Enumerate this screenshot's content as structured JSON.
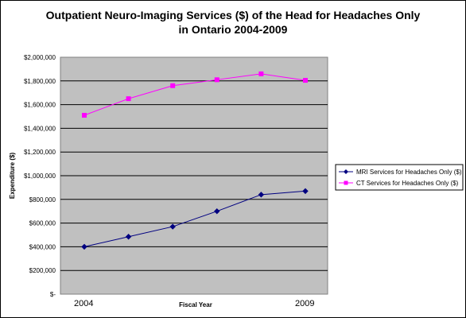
{
  "chart_data": {
    "type": "line",
    "title_lines": [
      "Outpatient Neuro-Imaging Services ($) of the Head for Headaches Only",
      "in Ontario 2004-2009"
    ],
    "xlabel": "Fiscal Year",
    "ylabel": "Expenditure ($)",
    "x_tick_labels": [
      "2004",
      "2009"
    ],
    "x": [
      2004,
      2005,
      2006,
      2007,
      2008,
      2009
    ],
    "ylim": [
      0,
      2000000
    ],
    "y_tick_labels": [
      "$-",
      "$200,000",
      "$400,000",
      "$600,000",
      "$800,000",
      "$1,000,000",
      "$1,200,000",
      "$1,400,000",
      "$1,600,000",
      "$1,800,000",
      "$2,000,000"
    ],
    "grid": true,
    "legend_position": "right",
    "plot_background": "#c0c0c0",
    "series": [
      {
        "name": "MRI Services for Headaches Only ($)",
        "color": "#000080",
        "marker": "diamond",
        "values": [
          400000,
          485000,
          570000,
          700000,
          840000,
          870000
        ]
      },
      {
        "name": "CT Services for Headaches Only ($)",
        "color": "#ff00ff",
        "marker": "square",
        "values": [
          1510000,
          1650000,
          1760000,
          1810000,
          1860000,
          1805000
        ]
      }
    ]
  }
}
